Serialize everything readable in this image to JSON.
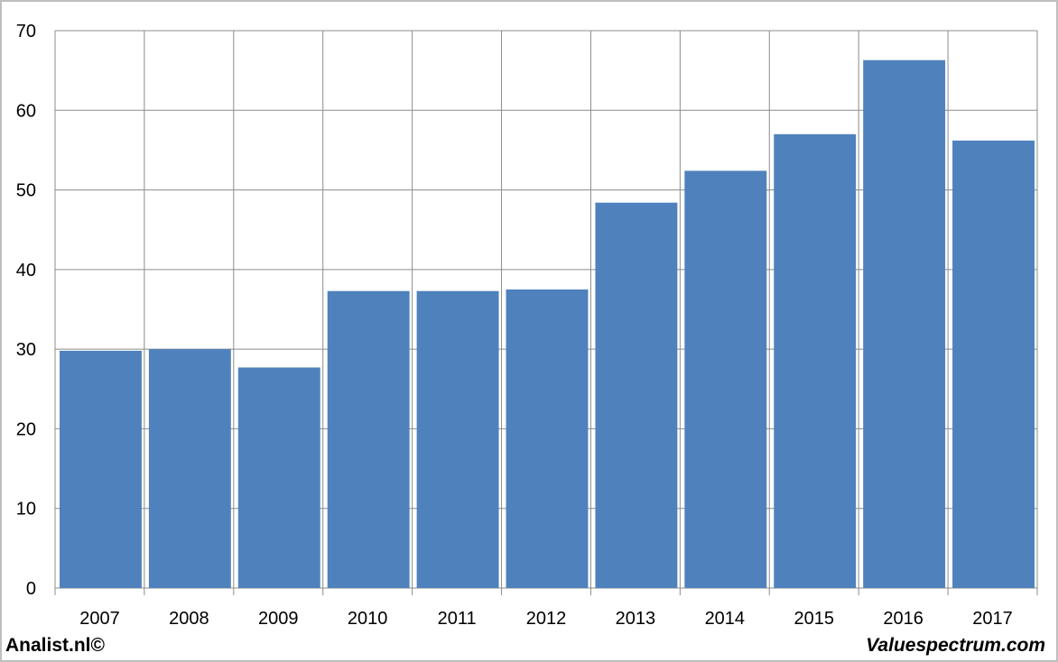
{
  "chart_data": {
    "type": "bar",
    "title": "",
    "xlabel": "",
    "ylabel": "",
    "categories": [
      "2007",
      "2008",
      "2009",
      "2010",
      "2011",
      "2012",
      "2013",
      "2014",
      "2015",
      "2016",
      "2017"
    ],
    "values": [
      29.8,
      30.0,
      27.7,
      37.3,
      37.3,
      37.5,
      48.4,
      52.4,
      57.0,
      66.3,
      56.2
    ],
    "ylim": [
      0,
      70
    ],
    "yticks": [
      0,
      10,
      20,
      30,
      40,
      50,
      60,
      70
    ],
    "grid": true,
    "legend": "none",
    "bar_color": "#4F81BD",
    "grid_color": "#8C8C8C"
  },
  "footer": {
    "left": "Analist.nl©",
    "right": "Valuespectrum.com"
  },
  "colors": {
    "frame_border": "#BFBFBF",
    "axis_text": "#000000"
  }
}
